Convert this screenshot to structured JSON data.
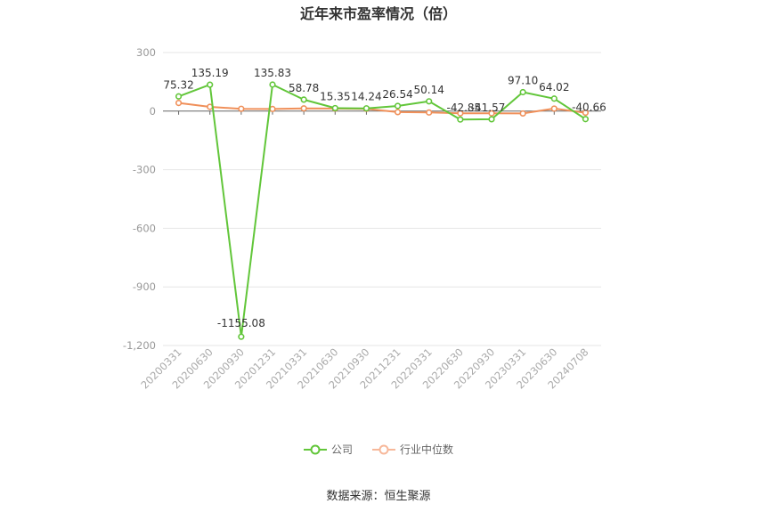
{
  "chart_data": {
    "type": "line",
    "title": "近年来市盈率情况（倍）",
    "categories": [
      "20200331",
      "20200630",
      "20200930",
      "20201231",
      "20210331",
      "20210630",
      "20210930",
      "20211231",
      "20220331",
      "20220630",
      "20220930",
      "20230331",
      "20230630",
      "20240708"
    ],
    "series": [
      {
        "name": "公司",
        "color": "#62c63a",
        "values": [
          75.32,
          135.19,
          -1155.08,
          135.83,
          58.78,
          15.35,
          14.24,
          26.54,
          50.14,
          -42.85,
          -41.57,
          97.1,
          64.02,
          -40.66
        ],
        "labels": [
          "75.32",
          "135.19",
          "-1155.08",
          "135.83",
          "58.78",
          "15.35",
          "14.24",
          "26.54",
          "50.14",
          "-42.85",
          "-41.57",
          "97.10",
          "64.02",
          "-40.66"
        ]
      },
      {
        "name": "行业中位数",
        "color": "#f0905a",
        "values": [
          42,
          22,
          12,
          11,
          14,
          13,
          12,
          -5,
          -7,
          -11,
          -11,
          -12,
          13,
          -8
        ]
      }
    ],
    "yticks": [
      "300",
      "0",
      "-300",
      "-600",
      "-900",
      "-1,200"
    ],
    "ytick_values": [
      300,
      0,
      -300,
      -600,
      -900,
      -1200
    ],
    "ylim": [
      -1200,
      300
    ],
    "grid": true,
    "legend_position": "bottom-center"
  },
  "source_text": "数据来源：恒生聚源"
}
